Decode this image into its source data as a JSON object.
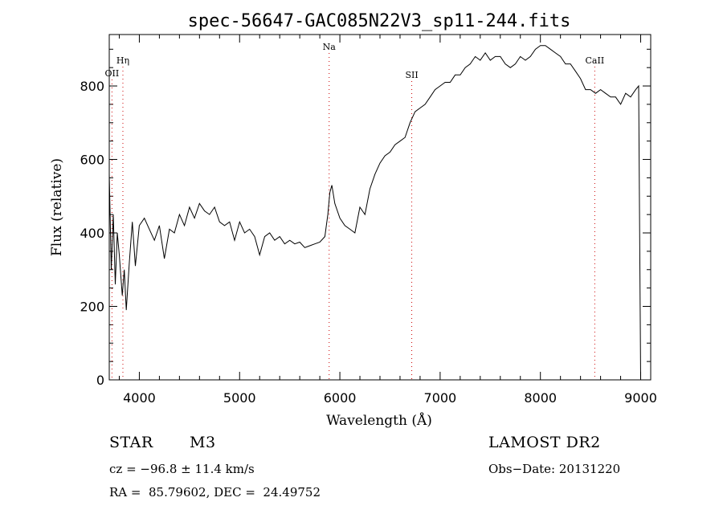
{
  "chart_data": {
    "type": "line",
    "title": "spec-56647-GAC085N22V3_sp11-244.fits",
    "xlabel": "Wavelength (Å)",
    "ylabel": "Flux (relative)",
    "xlim": [
      3700,
      9100
    ],
    "ylim": [
      0,
      940
    ],
    "x_ticks": [
      4000,
      5000,
      6000,
      7000,
      8000,
      9000
    ],
    "y_ticks": [
      0,
      200,
      400,
      600,
      800
    ],
    "grid": false,
    "line_color": "#000000",
    "marker_color": "#cc0000",
    "lines": [
      {
        "label": "OII",
        "wavelength": 3727
      },
      {
        "label": "Hη",
        "wavelength": 3836
      },
      {
        "label": "Na",
        "wavelength": 5893
      },
      {
        "label": "SII",
        "wavelength": 6717
      },
      {
        "label": "CaII",
        "wavelength": 8542
      }
    ],
    "series": [
      {
        "x": [
          3700,
          3720,
          3740,
          3760,
          3780,
          3800,
          3830,
          3850,
          3870,
          3900,
          3930,
          3960,
          4000,
          4050,
          4100,
          4150,
          4200,
          4250,
          4300,
          4350,
          4400,
          4450,
          4500,
          4550,
          4600,
          4650,
          4700,
          4750,
          4800,
          4850,
          4900,
          4950,
          5000,
          5050,
          5100,
          5150,
          5200,
          5250,
          5300,
          5350,
          5400,
          5450,
          5500,
          5550,
          5600,
          5650,
          5700,
          5750,
          5800,
          5850,
          5880,
          5900,
          5920,
          5950,
          6000,
          6050,
          6100,
          6150,
          6200,
          6250,
          6300,
          6350,
          6400,
          6450,
          6500,
          6550,
          6600,
          6650,
          6700,
          6750,
          6800,
          6850,
          6900,
          6950,
          7000,
          7050,
          7100,
          7150,
          7200,
          7250,
          7300,
          7350,
          7400,
          7450,
          7500,
          7550,
          7600,
          7650,
          7700,
          7750,
          7800,
          7850,
          7900,
          7950,
          8000,
          8050,
          8100,
          8150,
          8200,
          8250,
          8300,
          8350,
          8400,
          8450,
          8500,
          8550,
          8600,
          8650,
          8700,
          8750,
          8800,
          8850,
          8900,
          8950,
          8980,
          9000
        ],
        "values": [
          560,
          300,
          450,
          260,
          400,
          340,
          230,
          300,
          190,
          320,
          430,
          310,
          420,
          440,
          410,
          380,
          420,
          330,
          410,
          400,
          450,
          420,
          470,
          440,
          480,
          460,
          450,
          470,
          430,
          420,
          430,
          380,
          430,
          400,
          410,
          390,
          340,
          390,
          400,
          380,
          390,
          370,
          380,
          370,
          375,
          360,
          365,
          370,
          375,
          390,
          450,
          510,
          530,
          480,
          440,
          420,
          410,
          400,
          470,
          450,
          520,
          560,
          590,
          610,
          620,
          640,
          650,
          660,
          700,
          730,
          740,
          750,
          770,
          790,
          800,
          810,
          810,
          830,
          830,
          850,
          860,
          880,
          870,
          890,
          870,
          880,
          880,
          860,
          850,
          860,
          880,
          870,
          880,
          900,
          910,
          910,
          900,
          890,
          880,
          860,
          860,
          840,
          820,
          790,
          790,
          780,
          790,
          780,
          770,
          770,
          750,
          780,
          770,
          790,
          800,
          0
        ]
      }
    ]
  },
  "info": {
    "object_class": "STAR",
    "subclass": "M3",
    "survey": "LAMOST DR2",
    "cz": "cz = −96.8 ± 11.4 km/s",
    "obs_date": "Obs−Date: 20131220",
    "coords": "RA =  85.79602, DEC =  24.49752"
  }
}
